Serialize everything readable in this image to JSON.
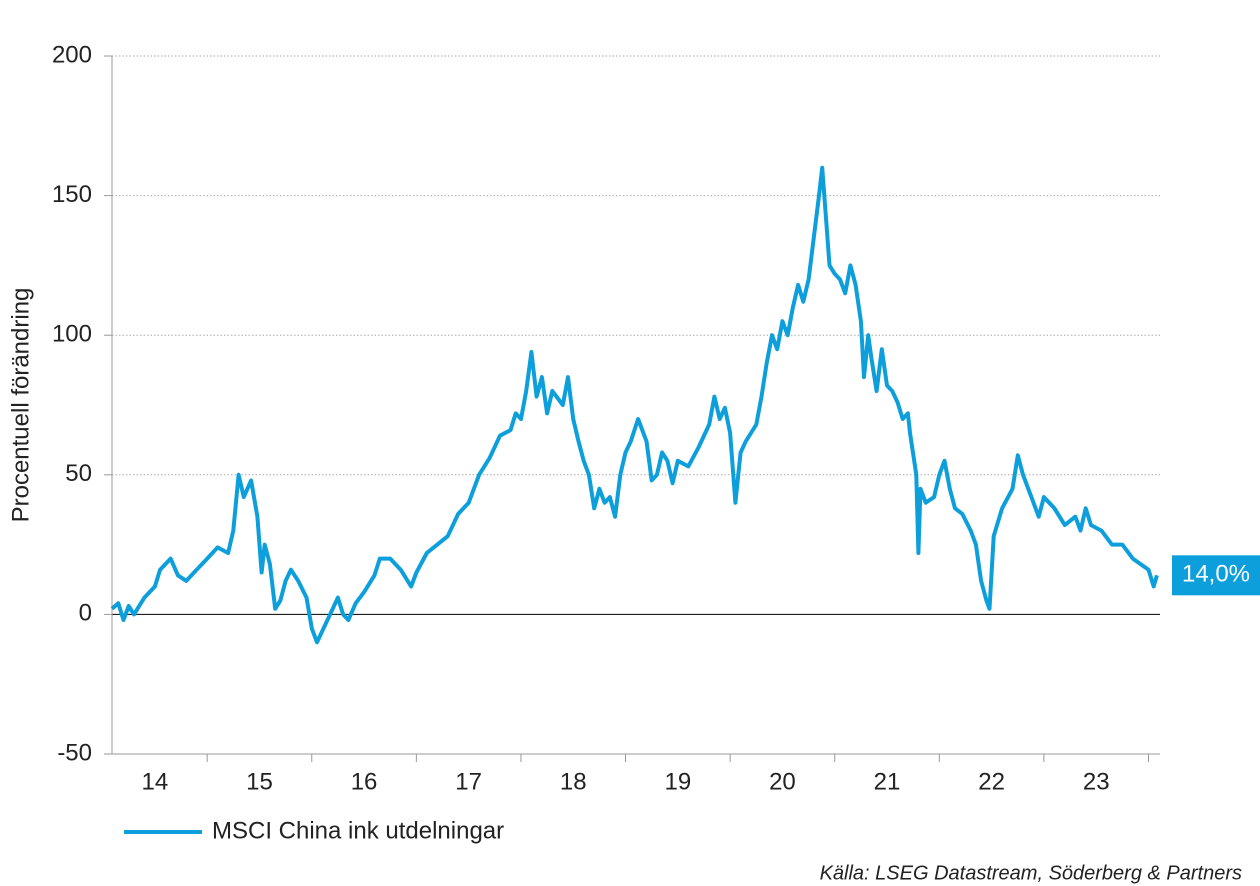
{
  "chart_data": {
    "type": "line",
    "y_label": "Procentuell förändring",
    "source": "Källa: LSEG Datastream, Söderberg & Partners",
    "end_label": {
      "value": 14,
      "label": "14,0%"
    },
    "xlim": [
      14.09,
      24.11
    ],
    "xticks": [
      {
        "value": 14.5,
        "label": "14"
      },
      {
        "value": 15.5,
        "label": "15"
      },
      {
        "value": 16.5,
        "label": "16"
      },
      {
        "value": 17.5,
        "label": "17"
      },
      {
        "value": 18.5,
        "label": "18"
      },
      {
        "value": 19.5,
        "label": "19"
      },
      {
        "value": 20.5,
        "label": "20"
      },
      {
        "value": 21.5,
        "label": "21"
      },
      {
        "value": 22.5,
        "label": "22"
      },
      {
        "value": 23.5,
        "label": "23"
      }
    ],
    "xtick_marks": [
      15,
      16,
      17,
      18,
      19,
      20,
      21,
      22,
      23,
      24
    ],
    "ylim": [
      -50,
      200
    ],
    "yticks": [
      -50,
      0,
      50,
      100,
      150,
      200
    ],
    "grid": true,
    "x": [
      14.09,
      14.15,
      14.2,
      14.25,
      14.3,
      14.4,
      14.5,
      14.55,
      14.65,
      14.72,
      14.8,
      14.9,
      15.0,
      15.1,
      15.2,
      15.25,
      15.3,
      15.35,
      15.42,
      15.48,
      15.52,
      15.55,
      15.6,
      15.65,
      15.7,
      15.75,
      15.8,
      15.87,
      15.95,
      16.0,
      16.05,
      16.1,
      16.2,
      16.25,
      16.3,
      16.35,
      16.42,
      16.5,
      16.6,
      16.65,
      16.75,
      16.85,
      16.95,
      17.0,
      17.1,
      17.2,
      17.3,
      17.4,
      17.5,
      17.6,
      17.7,
      17.8,
      17.9,
      17.95,
      18.0,
      18.05,
      18.1,
      18.15,
      18.2,
      18.25,
      18.3,
      18.4,
      18.45,
      18.5,
      18.55,
      18.6,
      18.65,
      18.7,
      18.75,
      18.8,
      18.85,
      18.9,
      18.95,
      19.0,
      19.05,
      19.12,
      19.2,
      19.25,
      19.3,
      19.35,
      19.4,
      19.45,
      19.5,
      19.6,
      19.7,
      19.8,
      19.85,
      19.9,
      19.95,
      20.0,
      20.05,
      20.1,
      20.15,
      20.25,
      20.3,
      20.35,
      20.4,
      20.45,
      20.5,
      20.55,
      20.6,
      20.65,
      20.7,
      20.75,
      20.8,
      20.85,
      20.88,
      20.92,
      20.95,
      21.0,
      21.05,
      21.1,
      21.15,
      21.2,
      21.25,
      21.28,
      21.32,
      21.35,
      21.4,
      21.45,
      21.5,
      21.55,
      21.6,
      21.65,
      21.7,
      21.72,
      21.78,
      21.8,
      21.82,
      21.87,
      21.95,
      22.0,
      22.05,
      22.1,
      22.15,
      22.22,
      22.3,
      22.35,
      22.4,
      22.45,
      22.48,
      22.52,
      22.6,
      22.7,
      22.75,
      22.8,
      22.88,
      22.95,
      23.0,
      23.1,
      23.2,
      23.3,
      23.35,
      23.4,
      23.45,
      23.55,
      23.65,
      23.75,
      23.85,
      24.0,
      24.05,
      24.08
    ],
    "series": [
      {
        "name": "MSCI China ink utdelningar",
        "color": "#0d9fdc",
        "values": [
          2,
          4,
          -2,
          3,
          0,
          6,
          10,
          16,
          20,
          14,
          12,
          16,
          20,
          24,
          22,
          30,
          50,
          42,
          48,
          35,
          15,
          25,
          18,
          2,
          5,
          12,
          16,
          12,
          6,
          -5,
          -10,
          -6,
          2,
          6,
          0,
          -2,
          4,
          8,
          14,
          20,
          20,
          16,
          10,
          15,
          22,
          25,
          28,
          36,
          40,
          50,
          56,
          64,
          66,
          72,
          70,
          80,
          94,
          78,
          85,
          72,
          80,
          75,
          85,
          70,
          62,
          55,
          50,
          38,
          45,
          40,
          42,
          35,
          50,
          58,
          62,
          70,
          62,
          48,
          50,
          58,
          55,
          47,
          55,
          53,
          60,
          68,
          78,
          70,
          74,
          65,
          40,
          58,
          62,
          68,
          78,
          90,
          100,
          95,
          105,
          100,
          110,
          118,
          112,
          120,
          135,
          150,
          160,
          140,
          125,
          122,
          120,
          115,
          125,
          118,
          105,
          85,
          100,
          92,
          80,
          95,
          82,
          80,
          76,
          70,
          72,
          65,
          50,
          22,
          45,
          40,
          42,
          50,
          55,
          45,
          38,
          36,
          30,
          25,
          12,
          5,
          2,
          28,
          38,
          45,
          57,
          50,
          42,
          35,
          42,
          38,
          32,
          35,
          30,
          38,
          32,
          30,
          25,
          25,
          20,
          16,
          10,
          14
        ]
      }
    ]
  }
}
